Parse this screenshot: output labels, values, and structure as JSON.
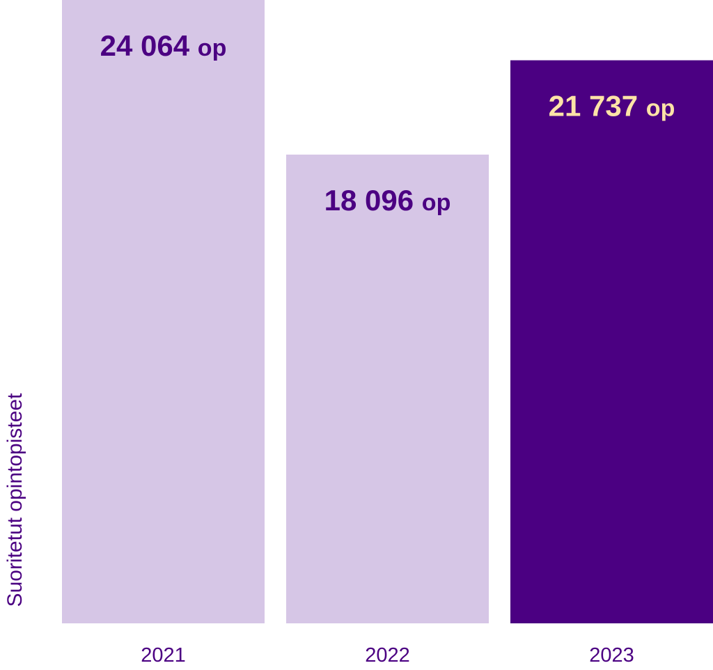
{
  "chart_data": {
    "type": "bar",
    "categories": [
      "2021",
      "2022",
      "2023"
    ],
    "values": [
      24064,
      18096,
      21737
    ],
    "data_labels": [
      {
        "number": "24 064",
        "unit": "op"
      },
      {
        "number": "18 096",
        "unit": "op"
      },
      {
        "number": "21 737",
        "unit": "op"
      }
    ],
    "title": "",
    "xlabel": "",
    "ylabel": "Suoritetut opintopisteet",
    "ylim": [
      0,
      24064
    ],
    "grid": false,
    "legend": "none",
    "colors": {
      "bar_default": "#d6c6e6",
      "bar_highlight": "#4b0082",
      "label_default": "#4b0082",
      "label_highlight": "#fde3a7",
      "axis_text": "#4b0082"
    },
    "highlight_index": 2
  }
}
